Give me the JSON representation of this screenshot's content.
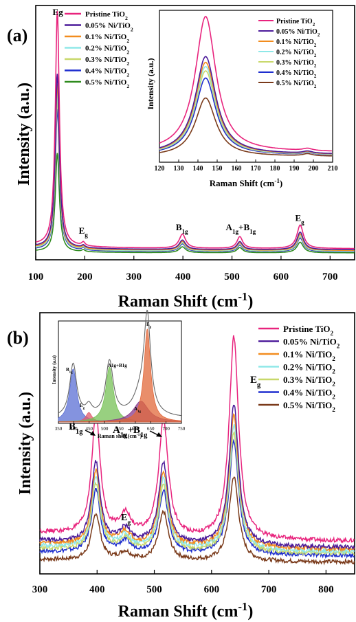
{
  "chart_data": [
    {
      "type": "line",
      "panel_label": "(a)",
      "xlabel": "Raman Shift (cm",
      "xlabel_sup": "-1",
      "xlabel_tail": ")",
      "ylabel": "Intensity (a.u.)",
      "xlim": [
        100,
        750
      ],
      "xticks": [
        100,
        200,
        300,
        400,
        500,
        600,
        700
      ],
      "legend_position": "top-left",
      "peak_labels": [
        {
          "text": "Eg",
          "x": 145,
          "y": 1.0
        },
        {
          "text": "E",
          "sub": "g",
          "x": 197,
          "y": 0.07
        },
        {
          "text": "B",
          "sub": "1g",
          "x": 398,
          "y": 0.085
        },
        {
          "text": "A",
          "sub": "1g",
          "text2": "+B",
          "sub2": "1g",
          "x": 518,
          "y": 0.085
        },
        {
          "text": "E",
          "sub": "g",
          "x": 638,
          "y": 0.125
        }
      ],
      "series": [
        {
          "name": "Pristine TiO",
          "sub": "2",
          "color": "#e8237d",
          "amps": [
            1.0,
            0.015,
            0.06,
            0.05,
            0.1
          ],
          "base": 0.03
        },
        {
          "name": "0.05% Ni/TiO",
          "sub": "2",
          "color": "#4b1a9a",
          "amps": [
            0.74,
            0.01,
            0.04,
            0.034,
            0.075
          ],
          "base": 0.025
        },
        {
          "name": "0.1% Ni/TiO",
          "sub": "2",
          "color": "#f28c1e",
          "amps": [
            0.7,
            0.01,
            0.038,
            0.032,
            0.07
          ],
          "base": 0.022
        },
        {
          "name": "0.2% Ni/TiO",
          "sub": "2",
          "color": "#8ee8e8",
          "amps": [
            0.67,
            0.01,
            0.036,
            0.03,
            0.066
          ],
          "base": 0.02
        },
        {
          "name": "0.3% Ni/TiO",
          "sub": "2",
          "color": "#c8d86a",
          "amps": [
            0.64,
            0.01,
            0.034,
            0.029,
            0.062
          ],
          "base": 0.019
        },
        {
          "name": "0.4% Ni/TiO",
          "sub": "2",
          "color": "#1e2ecf",
          "amps": [
            0.6,
            0.01,
            0.032,
            0.027,
            0.058
          ],
          "base": 0.017
        },
        {
          "name": "0.5% Ni/TiO",
          "sub": "2",
          "color": "#2e8b1e",
          "amps": [
            0.42,
            0.008,
            0.025,
            0.022,
            0.045
          ],
          "base": 0.012
        }
      ],
      "peaks_center_cm": [
        144,
        197,
        399,
        516,
        639
      ],
      "inset": {
        "xlabel": "Raman Shift (cm",
        "xlabel_sup": "-1",
        "xlabel_tail": ")",
        "ylabel": "Intensity (a.u.)",
        "xlim": [
          120,
          210
        ],
        "xticks": [
          120,
          130,
          140,
          150,
          160,
          170,
          180,
          190,
          200,
          210
        ],
        "legend_position": "top-right",
        "series": [
          {
            "name": "Pristine TiO",
            "sub": "2",
            "color": "#e8237d",
            "peak": 1.0,
            "base": 0.05
          },
          {
            "name": "0.05% Ni/TiO",
            "sub": "2",
            "color": "#4b1a9a",
            "peak": 0.72,
            "base": 0.035
          },
          {
            "name": "0.1% Ni/TiO",
            "sub": "2",
            "color": "#f28c1e",
            "peak": 0.68,
            "base": 0.033
          },
          {
            "name": "0.2% Ni/TiO",
            "sub": "2",
            "color": "#8ee8e8",
            "peak": 0.65,
            "base": 0.031
          },
          {
            "name": "0.3% Ni/TiO",
            "sub": "2",
            "color": "#c8d86a",
            "peak": 0.62,
            "base": 0.03
          },
          {
            "name": "0.4% Ni/TiO",
            "sub": "2",
            "color": "#1e2ecf",
            "peak": 0.57,
            "base": 0.028
          },
          {
            "name": "0.5% Ni/TiO",
            "sub": "2",
            "color": "#7a3a1a",
            "peak": 0.43,
            "base": 0.02
          }
        ]
      }
    },
    {
      "type": "line",
      "panel_label": "(b)",
      "xlabel": "Raman Shift (cm",
      "xlabel_sup": "-1",
      "xlabel_tail": ")",
      "ylabel": "Intensity (a.u.)",
      "xlim": [
        300,
        850
      ],
      "xticks": [
        300,
        400,
        500,
        600,
        700,
        800
      ],
      "legend_position": "top-right",
      "peak_labels": [
        {
          "text": "B",
          "sub": "1g",
          "x": 395,
          "y": 0.68
        },
        {
          "text": "E",
          "sub": "g",
          "x": 448,
          "y": 0.36
        },
        {
          "text": "A",
          "sub": "1g",
          "text2": "+B",
          "sub2": "1g",
          "x": 500,
          "y": 0.68
        },
        {
          "text": "E",
          "sub": "g",
          "x": 640,
          "y": 1.02
        }
      ],
      "series": [
        {
          "name": "Pristine TiO",
          "sub": "2",
          "color": "#e8237d",
          "amps": [
            0.6,
            0.1,
            0.58,
            1.0
          ],
          "base": 0.14
        },
        {
          "name": "0.05% Ni/TiO",
          "sub": "2",
          "color": "#4b1a9a",
          "amps": [
            0.4,
            0.07,
            0.4,
            0.7
          ],
          "base": 0.11
        },
        {
          "name": "0.1% Ni/TiO",
          "sub": "2",
          "color": "#f28c1e",
          "amps": [
            0.37,
            0.065,
            0.37,
            0.66
          ],
          "base": 0.1
        },
        {
          "name": "0.2% Ni/TiO",
          "sub": "2",
          "color": "#8ee8e8",
          "amps": [
            0.35,
            0.06,
            0.35,
            0.62
          ],
          "base": 0.09
        },
        {
          "name": "0.3% Ni/TiO",
          "sub": "2",
          "color": "#c8d86a",
          "amps": [
            0.33,
            0.06,
            0.33,
            0.59
          ],
          "base": 0.08
        },
        {
          "name": "0.4% Ni/TiO",
          "sub": "2",
          "color": "#1e2ecf",
          "amps": [
            0.31,
            0.055,
            0.31,
            0.56
          ],
          "base": 0.07
        },
        {
          "name": "0.5% Ni/TiO",
          "sub": "2",
          "color": "#7a3a1a",
          "amps": [
            0.23,
            0.04,
            0.24,
            0.42
          ],
          "base": 0.04
        }
      ],
      "peaks_center_cm": [
        398,
        449,
        516,
        639
      ],
      "inset": {
        "xlabel": "Raman shift (cm",
        "xlabel_sup": "-1",
        "xlabel_tail": ")",
        "ylabel": "Intensity (a.u)",
        "xlim": [
          350,
          750
        ],
        "xticks": [
          350,
          400,
          450,
          500,
          550,
          600,
          650,
          700,
          750
        ],
        "components": [
          {
            "label": "B",
            "sub": "1g",
            "center": 398,
            "amp": 0.56,
            "width": 14,
            "color": "#5b6fd4"
          },
          {
            "label": "E",
            "sub": "g",
            "center": 449,
            "amp": 0.1,
            "width": 12,
            "color": "#e05a6a"
          },
          {
            "label": "A1g+B1g",
            "sub": "",
            "center": 516,
            "amp": 0.58,
            "width": 15,
            "color": "#76c055"
          },
          {
            "label": "A",
            "sub": "1g",
            "center": 618,
            "amp": 0.22,
            "width": 30,
            "color": "#8a3a8a"
          },
          {
            "label": "E",
            "sub": "g",
            "center": 639,
            "amp": 0.98,
            "width": 13,
            "color": "#e2683a"
          }
        ]
      }
    }
  ]
}
